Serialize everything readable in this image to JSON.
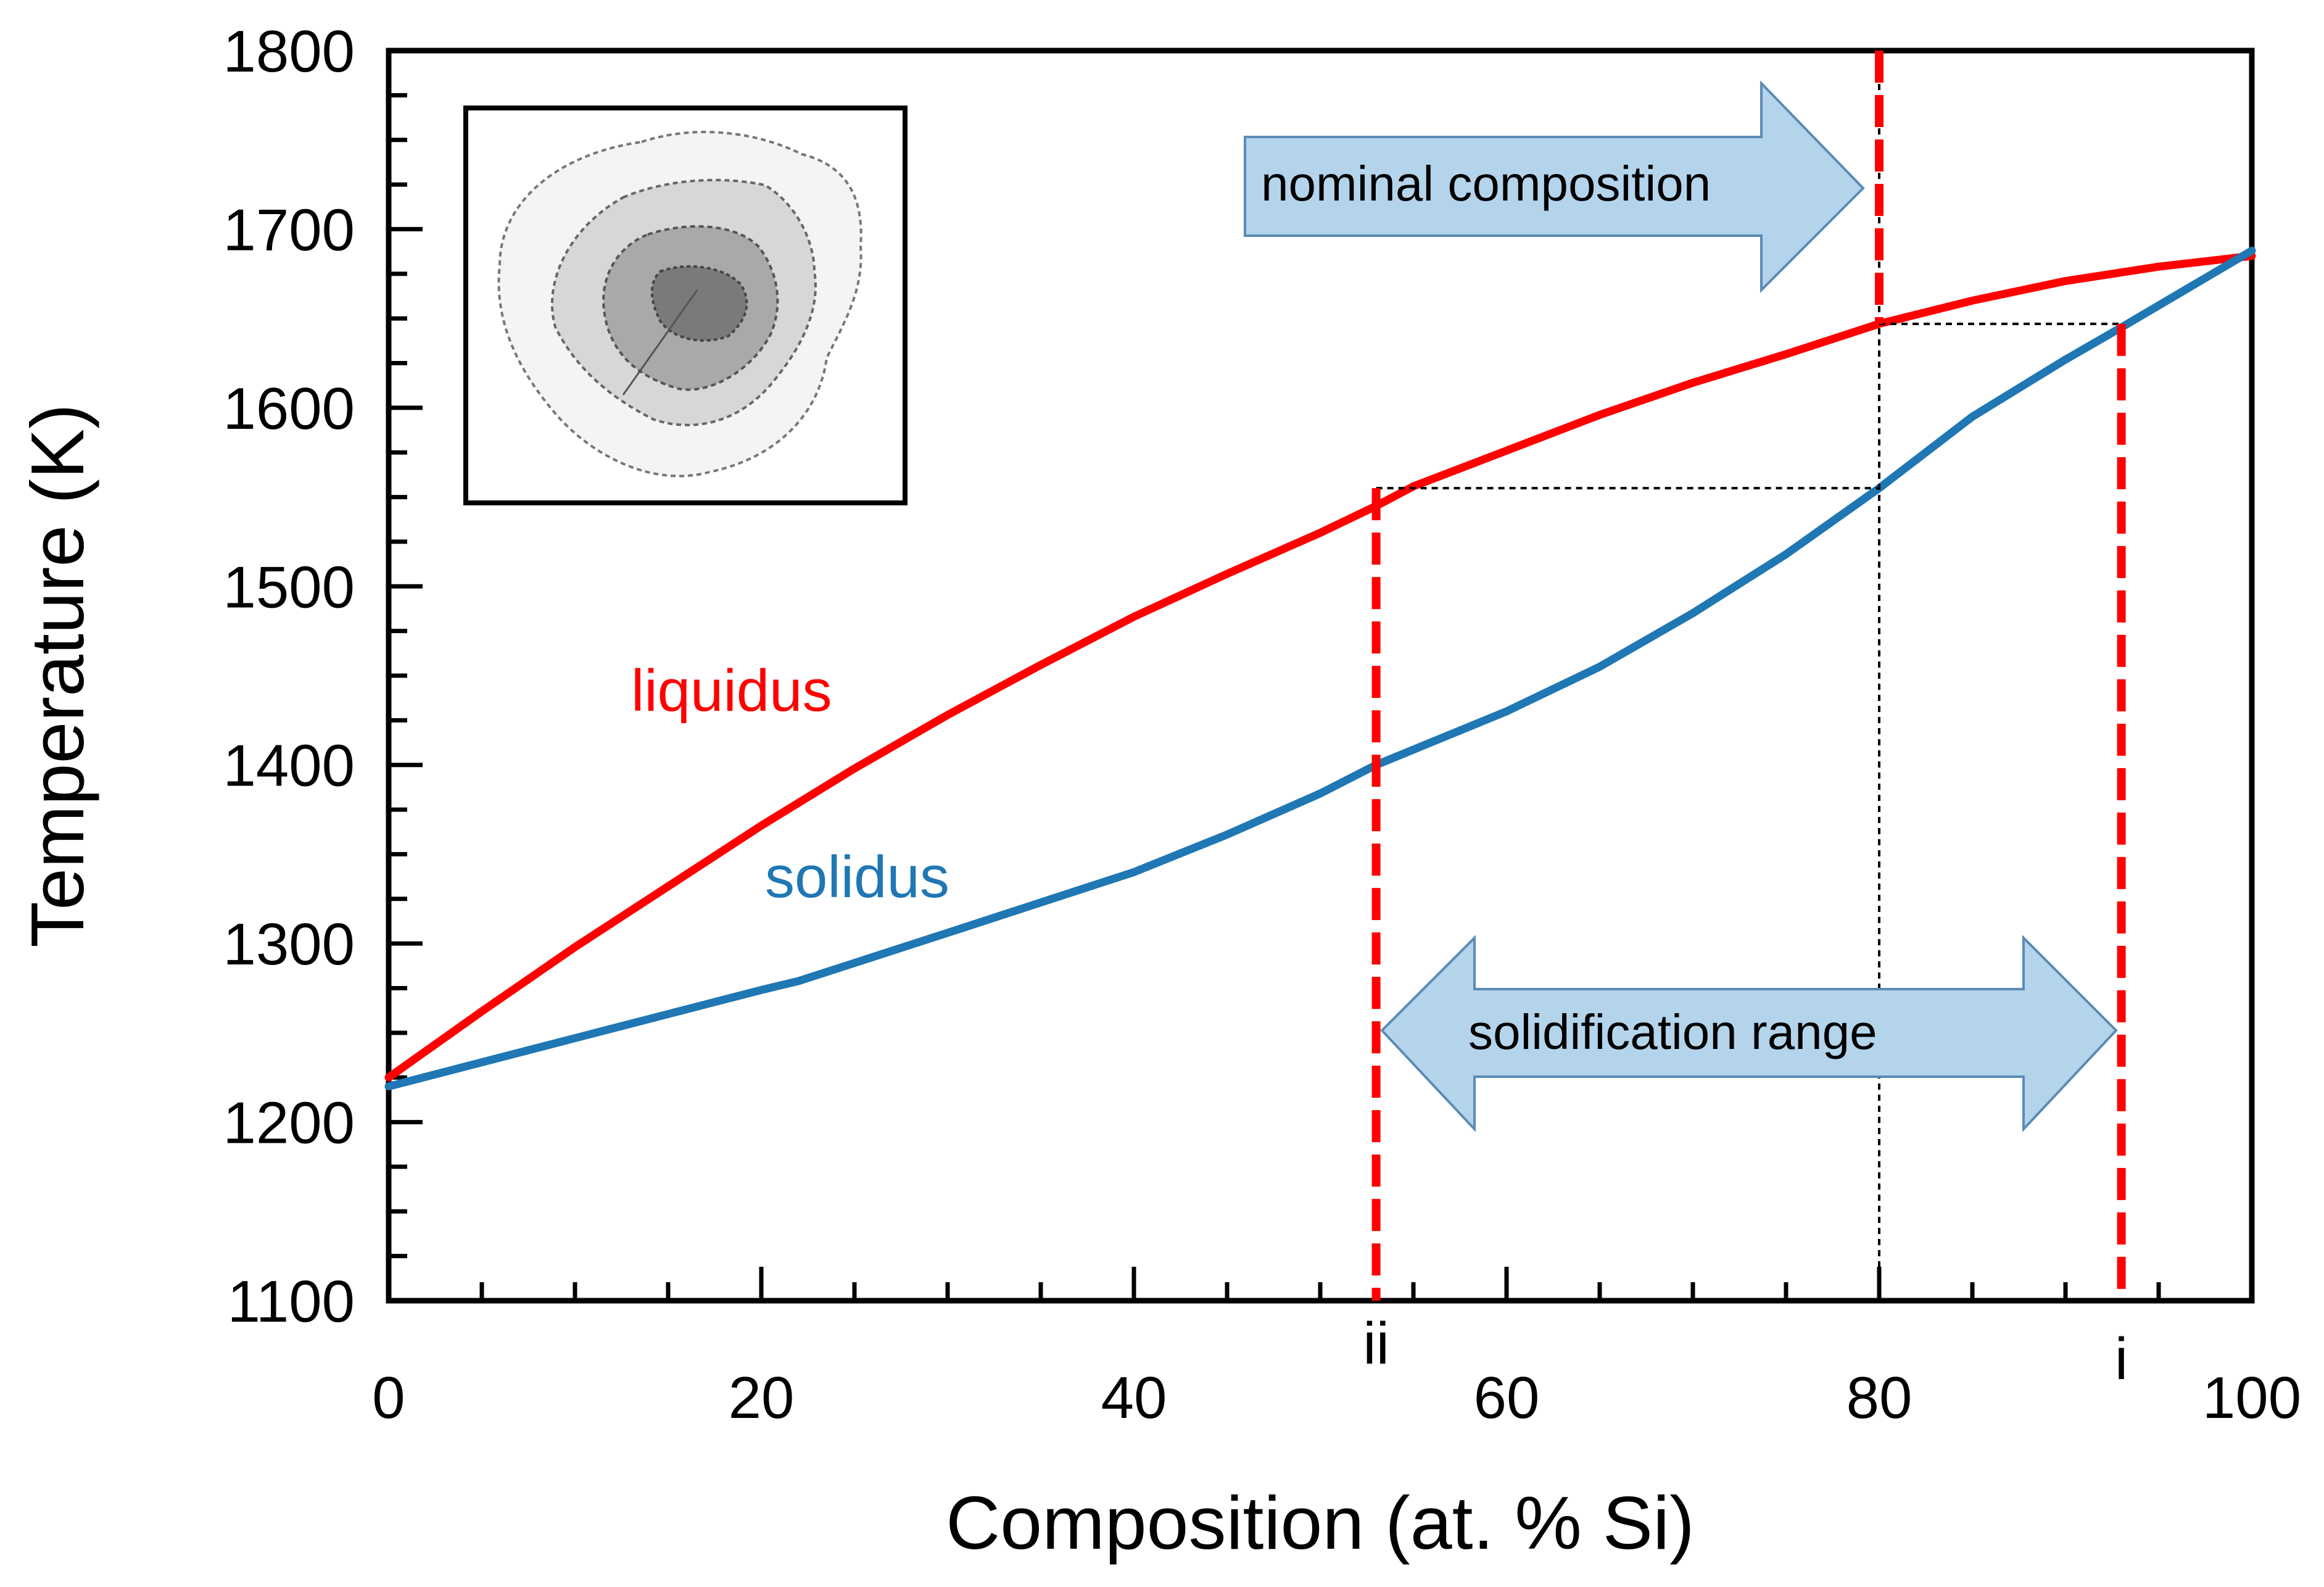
{
  "chart_data": {
    "type": "line",
    "xlabel": "Composition (at. % Si)",
    "ylabel": "Temperature (K)",
    "xlim": [
      0,
      100
    ],
    "ylim": [
      1100,
      1800
    ],
    "x_ticks": [
      0,
      20,
      40,
      60,
      80,
      100
    ],
    "y_ticks": [
      1100,
      1200,
      1300,
      1400,
      1500,
      1600,
      1700,
      1800
    ],
    "x_minor_step": 5,
    "y_minor_step": 25,
    "series": [
      {
        "name": "liquidus",
        "color": "#ff0000",
        "points": [
          [
            0,
            1225
          ],
          [
            5,
            1262
          ],
          [
            10,
            1298
          ],
          [
            15,
            1332
          ],
          [
            20,
            1366
          ],
          [
            25,
            1398
          ],
          [
            30,
            1428
          ],
          [
            35,
            1456
          ],
          [
            40,
            1483
          ],
          [
            45,
            1507
          ],
          [
            50,
            1530
          ],
          [
            53,
            1545
          ],
          [
            55,
            1556
          ],
          [
            60,
            1576
          ],
          [
            65,
            1596
          ],
          [
            70,
            1614
          ],
          [
            75,
            1630
          ],
          [
            80,
            1647
          ],
          [
            85,
            1660
          ],
          [
            90,
            1671
          ],
          [
            95,
            1679
          ],
          [
            100,
            1685
          ]
        ]
      },
      {
        "name": "solidus",
        "color": "#1f77b4",
        "points": [
          [
            0,
            1220
          ],
          [
            10,
            1247
          ],
          [
            20,
            1274
          ],
          [
            22,
            1279
          ],
          [
            30,
            1306
          ],
          [
            40,
            1340
          ],
          [
            45,
            1361
          ],
          [
            50,
            1384
          ],
          [
            53,
            1400
          ],
          [
            60,
            1430
          ],
          [
            65,
            1455
          ],
          [
            70,
            1485
          ],
          [
            75,
            1518
          ],
          [
            80,
            1555
          ],
          [
            85,
            1595
          ],
          [
            90,
            1627
          ],
          [
            93,
            1645
          ],
          [
            100,
            1688
          ]
        ]
      }
    ],
    "labels": {
      "liquidus": "liquidus",
      "solidus": "solidus",
      "nominal_arrow": "nominal composition",
      "range_arrow": "solidification range",
      "marker_i": "i",
      "marker_ii": "ii"
    },
    "annotations": {
      "nominal_composition_x": 80,
      "marker_i_x": 93,
      "marker_ii_x": 53,
      "tie_line_upper_T": 1647,
      "tie_line_lower_T": 1555
    },
    "inset": "microstructure contour image"
  }
}
